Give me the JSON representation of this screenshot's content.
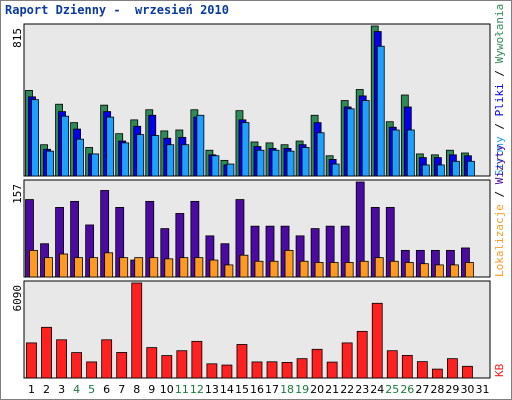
{
  "title": "Raport Dzienny -  wrzesień 2010",
  "colors": {
    "bg": "#e8e8e8",
    "wywolania": "#2e8b57",
    "pliki": "#0000ee",
    "strony": "#1ea0ff",
    "wizyty": "#4b0aa0",
    "lokalizacje": "#ff9a20",
    "kb": "#ff2020",
    "weekend": "#1a7a3a",
    "weekday": "#000000"
  },
  "right_labels": {
    "wywolania": "Wywołania",
    "pliki": "Pliki",
    "strony": "Strony",
    "wizyty": "Wizyty",
    "lokalizacje": "Lokalizacje",
    "kb": "KB"
  },
  "chart_data": [
    {
      "type": "bar",
      "name": "hits-panel",
      "ymax_label": "815",
      "ylim": [
        0,
        815
      ],
      "categories": [
        "1",
        "2",
        "3",
        "4",
        "5",
        "6",
        "7",
        "8",
        "9",
        "10",
        "11",
        "12",
        "13",
        "14",
        "15",
        "16",
        "17",
        "18",
        "19",
        "20",
        "21",
        "22",
        "23",
        "24",
        "25",
        "26",
        "27",
        "28",
        "29",
        "30",
        "31"
      ],
      "series": [
        {
          "name": "Wywołania",
          "values": [
            465,
            170,
            390,
            290,
            155,
            385,
            230,
            305,
            360,
            245,
            250,
            360,
            140,
            85,
            355,
            185,
            180,
            170,
            190,
            330,
            110,
            410,
            470,
            815,
            295,
            440,
            120,
            115,
            140,
            125,
            0
          ]
        },
        {
          "name": "Pliki",
          "values": [
            430,
            145,
            350,
            255,
            120,
            350,
            190,
            270,
            330,
            205,
            210,
            320,
            115,
            60,
            305,
            160,
            150,
            150,
            170,
            290,
            90,
            375,
            435,
            785,
            265,
            375,
            100,
            100,
            115,
            110,
            0
          ]
        },
        {
          "name": "Strony",
          "values": [
            415,
            135,
            325,
            200,
            120,
            320,
            180,
            225,
            220,
            170,
            170,
            330,
            110,
            65,
            290,
            140,
            140,
            135,
            155,
            235,
            65,
            365,
            410,
            705,
            250,
            250,
            60,
            60,
            80,
            80,
            0
          ]
        }
      ]
    },
    {
      "type": "bar",
      "name": "visits-panel",
      "ymax_label": "157",
      "ylim": [
        0,
        157
      ],
      "categories": [
        "1",
        "2",
        "3",
        "4",
        "5",
        "6",
        "7",
        "8",
        "9",
        "10",
        "11",
        "12",
        "13",
        "14",
        "15",
        "16",
        "17",
        "18",
        "19",
        "20",
        "21",
        "22",
        "23",
        "24",
        "25",
        "26",
        "27",
        "28",
        "29",
        "30",
        "31"
      ],
      "series": [
        {
          "name": "Wizyty",
          "values": [
            128,
            55,
            115,
            125,
            86,
            143,
            115,
            28,
            125,
            80,
            105,
            125,
            68,
            55,
            128,
            84,
            84,
            84,
            68,
            80,
            84,
            84,
            157,
            115,
            115,
            44,
            44,
            44,
            44,
            48,
            0
          ]
        },
        {
          "name": "Lokalizacje",
          "values": [
            44,
            32,
            38,
            32,
            32,
            40,
            32,
            32,
            32,
            30,
            32,
            32,
            28,
            20,
            36,
            26,
            26,
            44,
            26,
            24,
            24,
            24,
            26,
            32,
            26,
            24,
            22,
            20,
            20,
            24,
            0
          ]
        }
      ]
    },
    {
      "type": "bar",
      "name": "kb-panel",
      "ymax_label": "6090",
      "ylim": [
        0,
        6090
      ],
      "categories": [
        "1",
        "2",
        "3",
        "4",
        "5",
        "6",
        "7",
        "8",
        "9",
        "10",
        "11",
        "12",
        "13",
        "14",
        "15",
        "16",
        "17",
        "18",
        "19",
        "20",
        "21",
        "22",
        "23",
        "24",
        "25",
        "26",
        "27",
        "28",
        "29",
        "30",
        "31"
      ],
      "series": [
        {
          "name": "KB",
          "values": [
            2250,
            3250,
            2450,
            1630,
            1030,
            2450,
            1640,
            6090,
            1950,
            1440,
            1750,
            2350,
            910,
            830,
            2150,
            1030,
            1040,
            1000,
            1240,
            1840,
            1020,
            2250,
            2990,
            4790,
            1750,
            1450,
            1050,
            570,
            1240,
            750,
            0
          ]
        }
      ]
    }
  ]
}
